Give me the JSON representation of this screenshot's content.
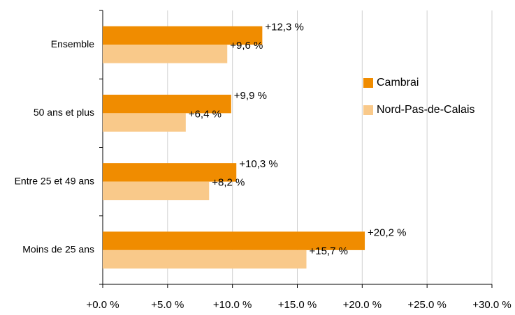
{
  "chart_data": {
    "type": "hbar",
    "categories": [
      "Ensemble",
      "50 ans et plus",
      "Entre 25 et 49 ans",
      "Moins de 25 ans"
    ],
    "series": [
      {
        "name": "Cambrai",
        "color": "#f08c00",
        "values": [
          12.3,
          9.9,
          10.3,
          20.2
        ],
        "value_labels": [
          "+12,3 %",
          "+9,9 %",
          "+10,3 %",
          "+20,2 %"
        ]
      },
      {
        "name": "Nord-Pas-de-Calais",
        "color": "#f9c98a",
        "values": [
          9.6,
          6.4,
          8.2,
          15.7
        ],
        "value_labels": [
          "+9,6 %",
          "+6,4 %",
          "+8,2 %",
          "+15,7 %"
        ]
      }
    ],
    "xlim": [
      0,
      30
    ],
    "xticks": [
      {
        "value": 0,
        "label": "+0.0 %"
      },
      {
        "value": 5,
        "label": "+5.0 %"
      },
      {
        "value": 10,
        "label": "+10.0 %"
      },
      {
        "value": 15,
        "label": "+15.0 %"
      },
      {
        "value": 20,
        "label": "+20.0 %"
      },
      {
        "value": 25,
        "label": "+25.0 %"
      },
      {
        "value": 30,
        "label": "+30.0 %"
      }
    ],
    "grid": true,
    "legend": "right"
  }
}
